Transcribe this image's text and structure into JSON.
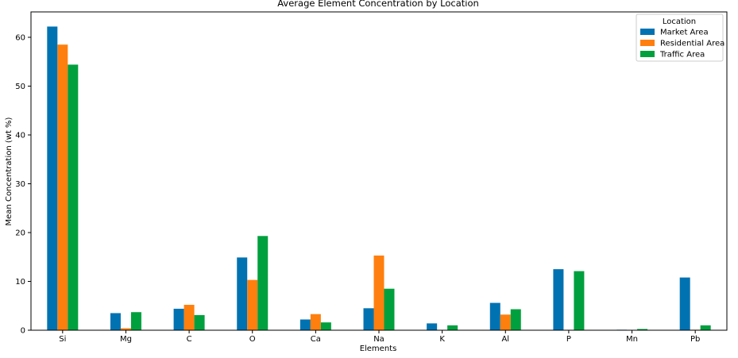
{
  "chart_data": {
    "type": "bar",
    "title": "Average Element Concentration by Location",
    "xlabel": "Elements",
    "ylabel": "Mean Concentration (wt %)",
    "categories": [
      "Si",
      "Mg",
      "C",
      "O",
      "Ca",
      "Na",
      "K",
      "Al",
      "P",
      "Mn",
      "Pb"
    ],
    "series": [
      {
        "name": "Market Area",
        "color": "#0072B2",
        "values": [
          62.2,
          3.5,
          4.4,
          14.9,
          2.2,
          4.5,
          1.4,
          5.6,
          12.5,
          0.1,
          10.8
        ]
      },
      {
        "name": "Residential Area",
        "color": "#FF7F0E",
        "values": [
          58.5,
          0.4,
          5.2,
          10.3,
          3.3,
          15.3,
          0.0,
          3.2,
          0.0,
          0.05,
          0.1
        ]
      },
      {
        "name": "Traffic Area",
        "color": "#00A03E",
        "values": [
          54.4,
          3.7,
          3.1,
          19.3,
          1.6,
          8.5,
          1.0,
          4.3,
          12.1,
          0.25,
          1.0
        ]
      }
    ],
    "ylim": [
      0,
      65.2
    ],
    "yticks": [
      0,
      10,
      20,
      30,
      40,
      50,
      60
    ],
    "legend": {
      "title": "Location",
      "position": "top-right"
    },
    "grid": false
  }
}
